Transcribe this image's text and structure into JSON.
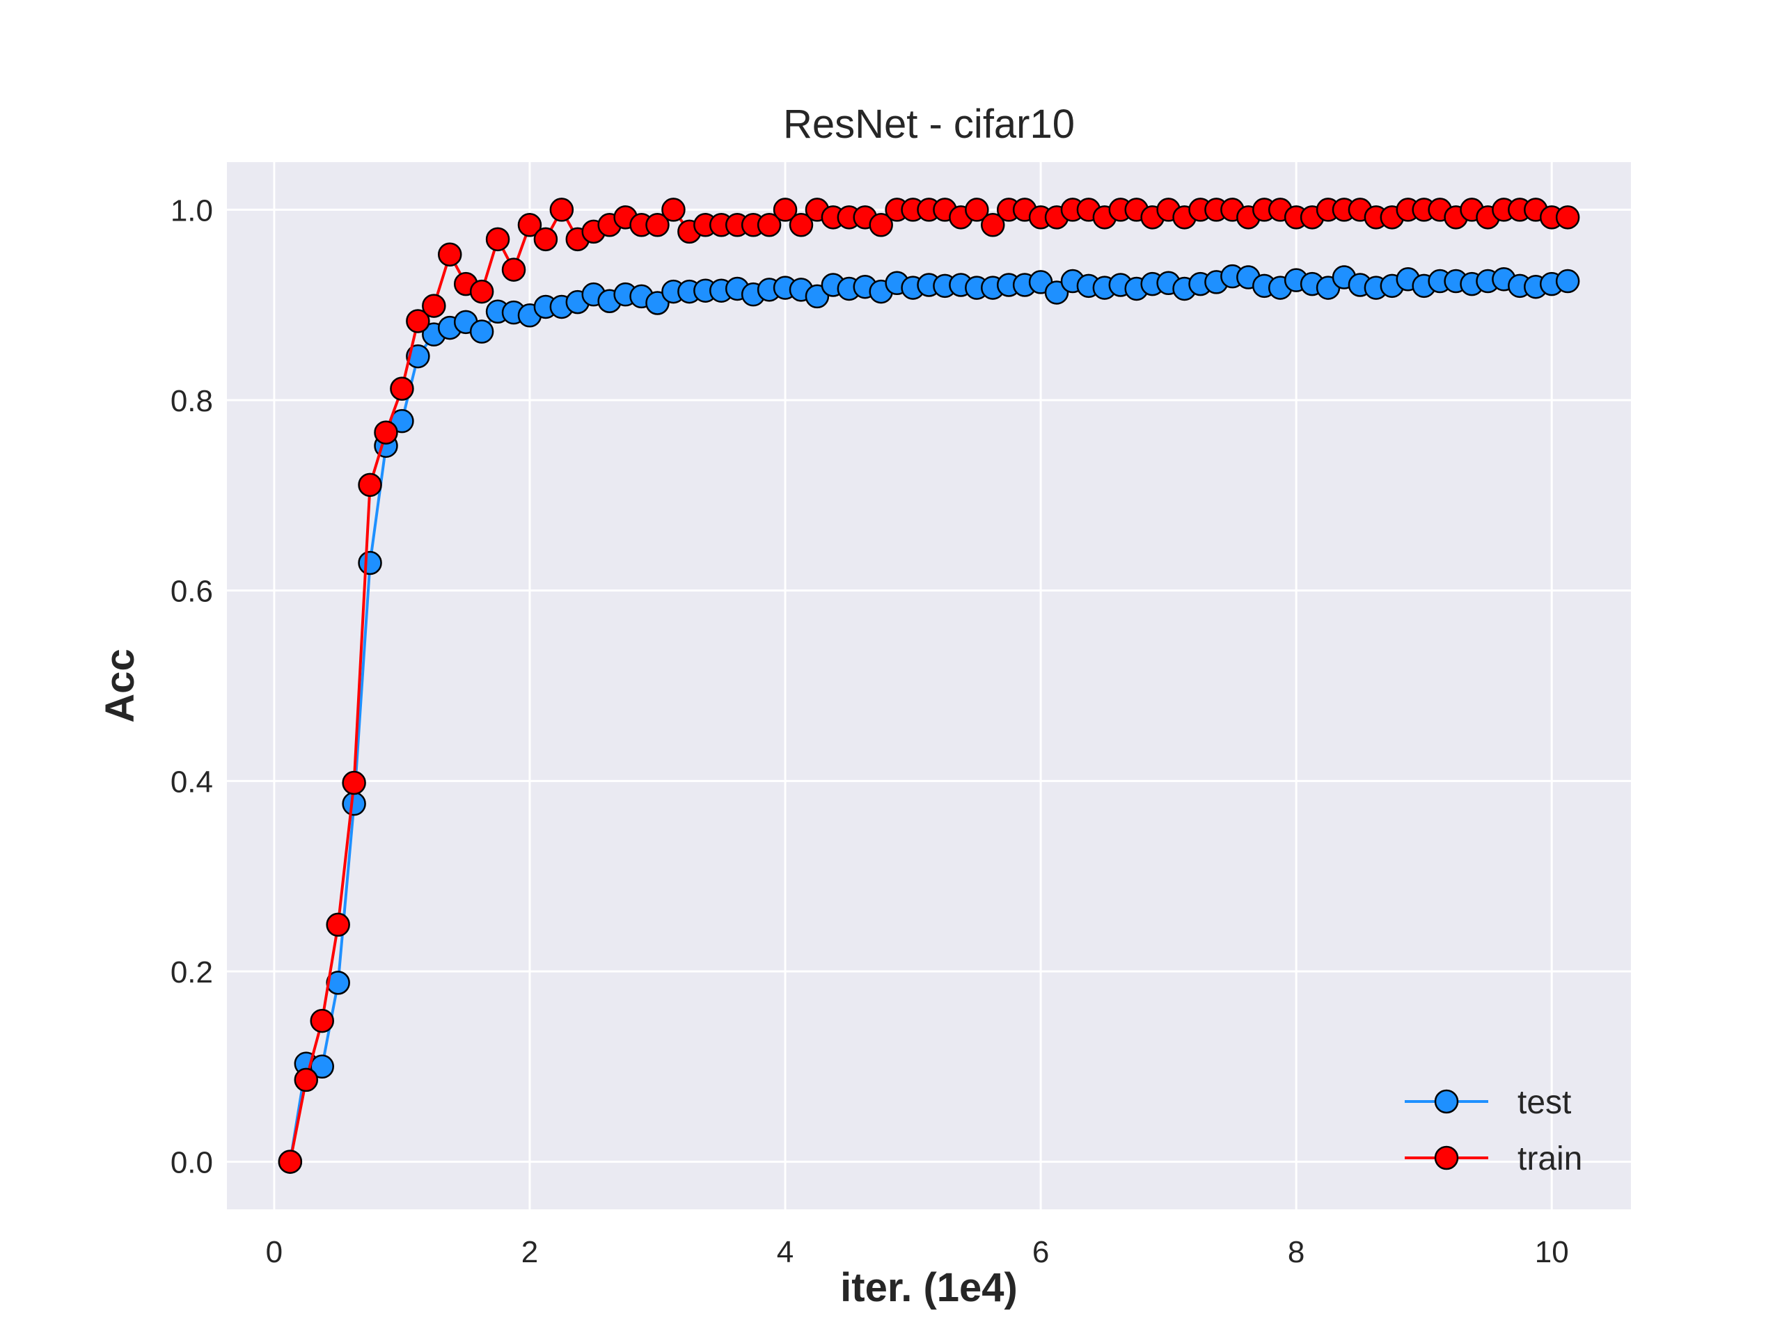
{
  "chart_data": {
    "type": "line",
    "title": "ResNet - cifar10",
    "xlabel": "iter. (1e4)",
    "ylabel": "Acc",
    "xlim": [
      -0.37,
      10.62
    ],
    "ylim": [
      -0.05,
      1.05
    ],
    "xticks": [
      0,
      2,
      4,
      6,
      8,
      10
    ],
    "yticks": [
      0.0,
      0.2,
      0.4,
      0.6,
      0.8,
      1.0
    ],
    "xtick_labels": [
      "0",
      "2",
      "4",
      "6",
      "8",
      "10"
    ],
    "ytick_labels": [
      "0.0",
      "0.2",
      "0.4",
      "0.6",
      "0.8",
      "1.0"
    ],
    "grid": true,
    "legend_position": "lower right",
    "background_color": "#eaeaf2",
    "x": [
      0.125,
      0.25,
      0.375,
      0.5,
      0.625,
      0.75,
      0.875,
      1.0,
      1.125,
      1.25,
      1.375,
      1.5,
      1.625,
      1.75,
      1.875,
      2.0,
      2.125,
      2.25,
      2.375,
      2.5,
      2.625,
      2.75,
      2.875,
      3.0,
      3.125,
      3.25,
      3.375,
      3.5,
      3.625,
      3.75,
      3.875,
      4.0,
      4.125,
      4.25,
      4.375,
      4.5,
      4.625,
      4.75,
      4.875,
      5.0,
      5.125,
      5.25,
      5.375,
      5.5,
      5.625,
      5.75,
      5.875,
      6.0,
      6.125,
      6.25,
      6.375,
      6.5,
      6.625,
      6.75,
      6.875,
      7.0,
      7.125,
      7.25,
      7.375,
      7.5,
      7.625,
      7.75,
      7.875,
      8.0,
      8.125,
      8.25,
      8.375,
      8.5,
      8.625,
      8.75,
      8.875,
      9.0,
      9.125,
      9.25,
      9.375,
      9.5,
      9.625,
      9.75,
      9.875,
      10.0,
      10.125
    ],
    "series": [
      {
        "name": "test",
        "color": "#1e90ff",
        "values": [
          0.0,
          0.103,
          0.1,
          0.188,
          0.376,
          0.629,
          0.752,
          0.778,
          0.846,
          0.869,
          0.876,
          0.882,
          0.872,
          0.893,
          0.892,
          0.889,
          0.898,
          0.898,
          0.903,
          0.911,
          0.904,
          0.911,
          0.909,
          0.902,
          0.914,
          0.914,
          0.915,
          0.915,
          0.917,
          0.911,
          0.916,
          0.918,
          0.916,
          0.909,
          0.921,
          0.917,
          0.919,
          0.914,
          0.923,
          0.918,
          0.921,
          0.92,
          0.921,
          0.918,
          0.918,
          0.921,
          0.921,
          0.924,
          0.913,
          0.925,
          0.92,
          0.918,
          0.921,
          0.917,
          0.922,
          0.923,
          0.917,
          0.922,
          0.924,
          0.93,
          0.929,
          0.92,
          0.918,
          0.926,
          0.922,
          0.918,
          0.929,
          0.921,
          0.918,
          0.92,
          0.927,
          0.92,
          0.925,
          0.925,
          0.922,
          0.925,
          0.927,
          0.92,
          0.919,
          0.922,
          0.925
        ]
      },
      {
        "name": "train",
        "color": "#ff0000",
        "values": [
          0.0,
          0.086,
          0.148,
          0.249,
          0.398,
          0.711,
          0.766,
          0.812,
          0.883,
          0.899,
          0.953,
          0.922,
          0.914,
          0.969,
          0.937,
          0.984,
          0.969,
          1.0,
          0.969,
          0.977,
          0.984,
          0.992,
          0.984,
          0.984,
          1.0,
          0.977,
          0.984,
          0.984,
          0.984,
          0.984,
          0.984,
          1.0,
          0.984,
          1.0,
          0.992,
          0.992,
          0.992,
          0.984,
          1.0,
          1.0,
          1.0,
          1.0,
          0.992,
          1.0,
          0.984,
          1.0,
          1.0,
          0.992,
          0.992,
          1.0,
          1.0,
          0.992,
          1.0,
          1.0,
          0.992,
          1.0,
          0.992,
          1.0,
          1.0,
          1.0,
          0.992,
          1.0,
          1.0,
          0.992,
          0.992,
          1.0,
          1.0,
          1.0,
          0.992,
          0.992,
          1.0,
          1.0,
          1.0,
          0.992,
          1.0,
          0.992,
          1.0,
          1.0,
          1.0,
          0.992,
          0.992
        ]
      }
    ]
  }
}
